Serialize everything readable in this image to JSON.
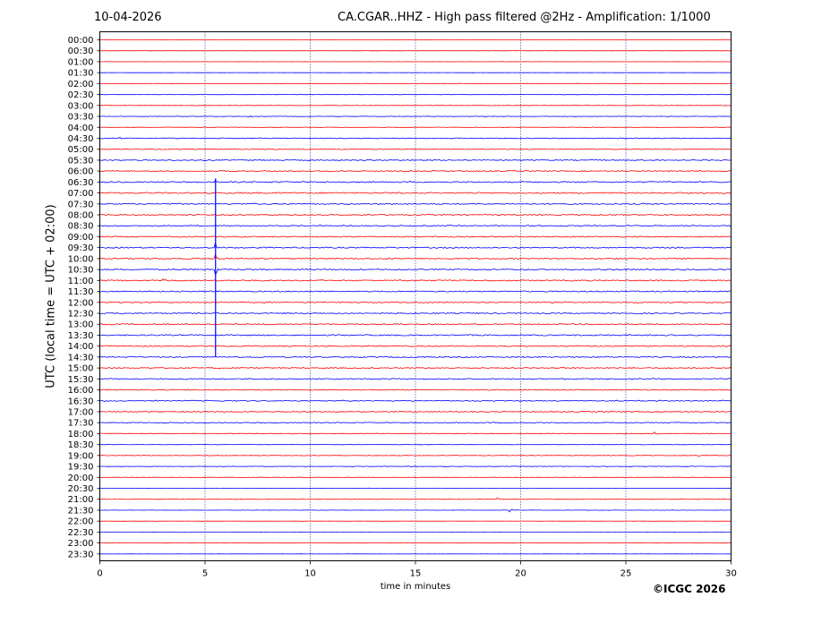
{
  "header": {
    "date": "10-04-2026",
    "title": "CA.CGAR..HHZ - High pass filtered @2Hz - Amplification: 1/1000"
  },
  "footer": {
    "copyright": "©ICGC 2026"
  },
  "chart_data": {
    "type": "line",
    "title": "CA.CGAR..HHZ - High pass filtered @2Hz - Amplification: 1/1000",
    "xlabel": "time in minutes",
    "ylabel": "UTC (local time = UTC + 02:00)",
    "xlim": [
      0,
      30
    ],
    "xticks": [
      0,
      5,
      10,
      15,
      20,
      25,
      30
    ],
    "xtick_labels": [
      "0",
      "5",
      "10",
      "15",
      "20",
      "25",
      "30"
    ],
    "vertical_gridlines": [
      5,
      10,
      15,
      20,
      25
    ],
    "trace_labels": [
      "00:00",
      "00:30",
      "01:00",
      "01:30",
      "02:00",
      "02:30",
      "03:00",
      "03:30",
      "04:00",
      "04:30",
      "05:00",
      "05:30",
      "06:00",
      "06:30",
      "07:00",
      "07:30",
      "08:00",
      "08:30",
      "09:00",
      "09:30",
      "10:00",
      "10:30",
      "11:00",
      "11:30",
      "12:00",
      "12:30",
      "13:00",
      "13:30",
      "14:00",
      "14:30",
      "15:00",
      "15:30",
      "16:00",
      "16:30",
      "17:00",
      "17:30",
      "18:00",
      "18:30",
      "19:00",
      "19:30",
      "20:00",
      "20:30",
      "21:00",
      "21:30",
      "22:00",
      "22:30",
      "23:00",
      "23:30"
    ],
    "colors": {
      "trace_a": "#ff0000",
      "trace_b": "#0000ff",
      "grid": "#000080"
    },
    "trace_colors": [
      "red",
      "red",
      "red",
      "blue",
      "red",
      "blue",
      "red",
      "blue",
      "red",
      "blue",
      "red",
      "blue",
      "red",
      "blue",
      "red",
      "blue",
      "red",
      "blue",
      "red",
      "blue",
      "red",
      "blue",
      "red",
      "blue",
      "red",
      "blue",
      "red",
      "blue",
      "red",
      "blue",
      "red",
      "blue",
      "red",
      "blue",
      "red",
      "blue",
      "red",
      "blue",
      "red",
      "blue",
      "red",
      "blue",
      "red",
      "blue",
      "red",
      "blue",
      "red",
      "blue"
    ],
    "noise_level": [
      0.2,
      0.2,
      0.2,
      0.2,
      0.3,
      0.4,
      0.4,
      0.5,
      0.6,
      0.9,
      0.9,
      1.0,
      1.1,
      1.4,
      1.4,
      1.3,
      1.2,
      1.2,
      1.2,
      1.3,
      1.3,
      1.3,
      1.3,
      1.2,
      1.2,
      1.2,
      1.2,
      1.3,
      1.2,
      1.2,
      1.1,
      1.1,
      1.0,
      1.1,
      1.0,
      0.9,
      0.7,
      0.5,
      0.5,
      0.5,
      0.4,
      0.4,
      0.4,
      0.3,
      0.2,
      0.2,
      0.2,
      0.2
    ],
    "events": [
      {
        "trace": "03:30",
        "minute": 7.1,
        "amplitude": 1.5
      },
      {
        "trace": "04:30",
        "minute": 1.0,
        "amplitude": 1.5
      },
      {
        "trace": "06:30",
        "minute": 5.5,
        "amplitude": 2.0
      },
      {
        "trace": "09:30",
        "minute": 5.5,
        "amplitude": 6.0
      },
      {
        "trace": "10:00",
        "minute": 5.5,
        "amplitude": 12.0
      },
      {
        "trace": "10:30",
        "minute": 5.5,
        "amplitude": 10.0
      },
      {
        "trace": "11:00",
        "minute": 3.0,
        "amplitude": 8.0
      },
      {
        "trace": "13:30",
        "minute": 26.9,
        "amplitude": 1.5
      },
      {
        "trace": "17:00",
        "minute": 17.7,
        "amplitude": 1.5
      },
      {
        "trace": "18:00",
        "minute": 26.4,
        "amplitude": 2.0
      },
      {
        "trace": "19:00",
        "minute": 28.5,
        "amplitude": 1.5
      },
      {
        "trace": "21:00",
        "minute": 18.9,
        "amplitude": 2.0
      },
      {
        "trace": "21:30",
        "minute": 19.5,
        "amplitude": 2.0
      }
    ],
    "long_transient": {
      "minute": 5.5,
      "from_trace": "06:30",
      "to_trace": "14:30"
    }
  }
}
